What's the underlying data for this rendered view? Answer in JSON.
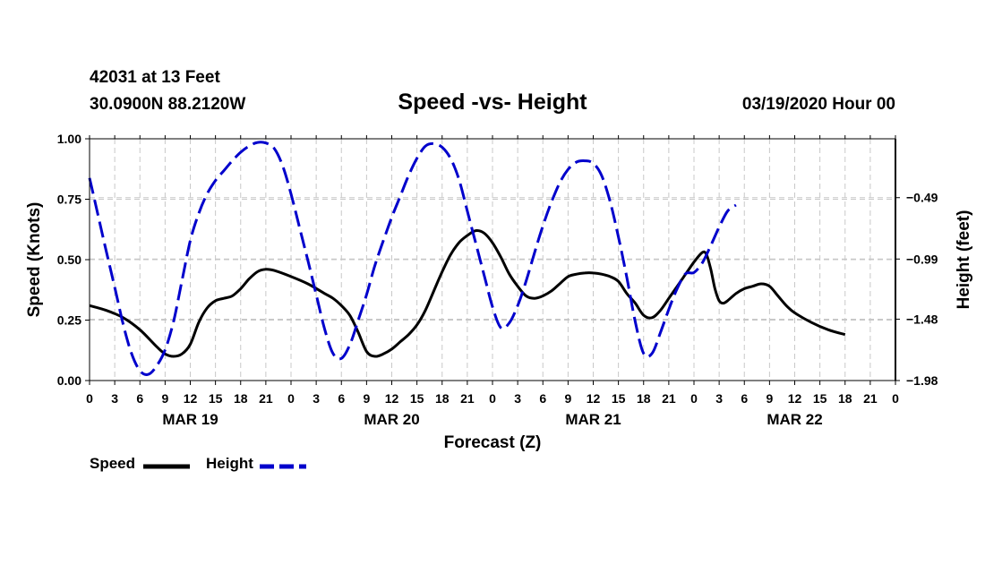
{
  "header": {
    "station": "42031 at 13 Feet",
    "coords": "30.0900N 88.2120W",
    "title": "Speed -vs- Height",
    "run": "03/19/2020 Hour 00"
  },
  "chart_data": {
    "type": "line",
    "title": "Speed -vs- Height",
    "xlabel": "Forecast (Z)",
    "ylabel_left": "Speed (Knots)",
    "ylabel_right": "Height (feet)",
    "x_hours_range": [
      0,
      96
    ],
    "x_tick_labels": [
      "0",
      "3",
      "6",
      "9",
      "12",
      "15",
      "18",
      "21",
      "0",
      "3",
      "6",
      "9",
      "12",
      "15",
      "18",
      "21",
      "0",
      "3",
      "6",
      "9",
      "12",
      "15",
      "18",
      "21",
      "0",
      "3",
      "6",
      "9",
      "12",
      "15",
      "18",
      "21",
      "0"
    ],
    "day_labels": [
      {
        "hour": 12,
        "label": "MAR 19"
      },
      {
        "hour": 36,
        "label": "MAR 20"
      },
      {
        "hour": 60,
        "label": "MAR 21"
      },
      {
        "hour": 84,
        "label": "MAR 22"
      }
    ],
    "ylim_left": [
      0,
      1
    ],
    "yticks_left": [
      "0.00",
      "0.25",
      "0.50",
      "0.75",
      "1.00"
    ],
    "ylim_right": [
      -1.98,
      -0.0104
    ],
    "yticks_right": [
      {
        "value": -1.98,
        "label": "−1.98"
      },
      {
        "value": -1.48,
        "label": "−1.48"
      },
      {
        "value": -0.99,
        "label": "−0.99"
      },
      {
        "value": -0.49,
        "label": "−0.49"
      }
    ],
    "grid": true,
    "legend": "bottom-left",
    "series": [
      {
        "name": "Speed",
        "axis": "left",
        "color": "#000000",
        "style": "solid",
        "points": [
          [
            0,
            0.31
          ],
          [
            2,
            0.29
          ],
          [
            4,
            0.26
          ],
          [
            6,
            0.21
          ],
          [
            8,
            0.14
          ],
          [
            9,
            0.11
          ],
          [
            10,
            0.1
          ],
          [
            11,
            0.11
          ],
          [
            12,
            0.15
          ],
          [
            13,
            0.24
          ],
          [
            14,
            0.3
          ],
          [
            15,
            0.33
          ],
          [
            16,
            0.34
          ],
          [
            17,
            0.35
          ],
          [
            18,
            0.38
          ],
          [
            19,
            0.42
          ],
          [
            20,
            0.45
          ],
          [
            21,
            0.46
          ],
          [
            22,
            0.455
          ],
          [
            24,
            0.43
          ],
          [
            26,
            0.4
          ],
          [
            28,
            0.36
          ],
          [
            29,
            0.34
          ],
          [
            30,
            0.31
          ],
          [
            31,
            0.27
          ],
          [
            32,
            0.2
          ],
          [
            33,
            0.12
          ],
          [
            34,
            0.1
          ],
          [
            35,
            0.11
          ],
          [
            36,
            0.13
          ],
          [
            37,
            0.16
          ],
          [
            38,
            0.19
          ],
          [
            39,
            0.23
          ],
          [
            40,
            0.29
          ],
          [
            41,
            0.37
          ],
          [
            42,
            0.45
          ],
          [
            43,
            0.52
          ],
          [
            44,
            0.57
          ],
          [
            45,
            0.6
          ],
          [
            46,
            0.62
          ],
          [
            47,
            0.61
          ],
          [
            48,
            0.57
          ],
          [
            49,
            0.51
          ],
          [
            50,
            0.44
          ],
          [
            51,
            0.39
          ],
          [
            52,
            0.35
          ],
          [
            53,
            0.34
          ],
          [
            54,
            0.35
          ],
          [
            55,
            0.37
          ],
          [
            56,
            0.4
          ],
          [
            57,
            0.43
          ],
          [
            58,
            0.44
          ],
          [
            59,
            0.445
          ],
          [
            60,
            0.445
          ],
          [
            61,
            0.44
          ],
          [
            62,
            0.43
          ],
          [
            63,
            0.41
          ],
          [
            64,
            0.36
          ],
          [
            65,
            0.32
          ],
          [
            66,
            0.27
          ],
          [
            67,
            0.26
          ],
          [
            68,
            0.29
          ],
          [
            69,
            0.34
          ],
          [
            70,
            0.39
          ],
          [
            71,
            0.44
          ],
          [
            72,
            0.49
          ],
          [
            73,
            0.53
          ],
          [
            73.5,
            0.52
          ],
          [
            74,
            0.46
          ],
          [
            74.5,
            0.38
          ],
          [
            75,
            0.33
          ],
          [
            75.5,
            0.32
          ],
          [
            76,
            0.33
          ],
          [
            77,
            0.36
          ],
          [
            78,
            0.38
          ],
          [
            79,
            0.39
          ],
          [
            80,
            0.4
          ],
          [
            81,
            0.39
          ],
          [
            82,
            0.35
          ],
          [
            83,
            0.31
          ],
          [
            84,
            0.28
          ],
          [
            86,
            0.24
          ],
          [
            88,
            0.21
          ],
          [
            90,
            0.19
          ]
        ]
      },
      {
        "name": "Height",
        "axis": "right",
        "color": "#0000cc",
        "style": "dashed",
        "points": [
          [
            0,
            -0.33
          ],
          [
            1,
            -0.63
          ],
          [
            2,
            -0.93
          ],
          [
            3,
            -1.22
          ],
          [
            4,
            -1.52
          ],
          [
            5,
            -1.76
          ],
          [
            6,
            -1.9
          ],
          [
            7,
            -1.93
          ],
          [
            8,
            -1.86
          ],
          [
            9,
            -1.73
          ],
          [
            10,
            -1.5
          ],
          [
            11,
            -1.17
          ],
          [
            12,
            -0.84
          ],
          [
            13,
            -0.62
          ],
          [
            14,
            -0.46
          ],
          [
            15,
            -0.35
          ],
          [
            16,
            -0.27
          ],
          [
            17,
            -0.19
          ],
          [
            18,
            -0.12
          ],
          [
            19,
            -0.07
          ],
          [
            20,
            -0.04
          ],
          [
            21,
            -0.045
          ],
          [
            22,
            -0.09
          ],
          [
            23,
            -0.23
          ],
          [
            24,
            -0.46
          ],
          [
            25,
            -0.73
          ],
          [
            26,
            -1.0
          ],
          [
            27,
            -1.28
          ],
          [
            28,
            -1.56
          ],
          [
            29,
            -1.76
          ],
          [
            30,
            -1.8
          ],
          [
            31,
            -1.69
          ],
          [
            32,
            -1.49
          ],
          [
            33,
            -1.28
          ],
          [
            34,
            -1.04
          ],
          [
            35,
            -0.84
          ],
          [
            36,
            -0.65
          ],
          [
            37,
            -0.48
          ],
          [
            38,
            -0.31
          ],
          [
            39,
            -0.17
          ],
          [
            40,
            -0.07
          ],
          [
            41,
            -0.05
          ],
          [
            42,
            -0.08
          ],
          [
            43,
            -0.17
          ],
          [
            44,
            -0.34
          ],
          [
            45,
            -0.6
          ],
          [
            46,
            -0.86
          ],
          [
            47,
            -1.12
          ],
          [
            48,
            -1.38
          ],
          [
            49,
            -1.55
          ],
          [
            50,
            -1.51
          ],
          [
            51,
            -1.37
          ],
          [
            52,
            -1.17
          ],
          [
            53,
            -0.94
          ],
          [
            54,
            -0.72
          ],
          [
            55,
            -0.53
          ],
          [
            56,
            -0.37
          ],
          [
            57,
            -0.26
          ],
          [
            58,
            -0.2
          ],
          [
            59,
            -0.19
          ],
          [
            60,
            -0.21
          ],
          [
            61,
            -0.31
          ],
          [
            62,
            -0.52
          ],
          [
            63,
            -0.81
          ],
          [
            64,
            -1.14
          ],
          [
            65,
            -1.5
          ],
          [
            66,
            -1.76
          ],
          [
            67,
            -1.76
          ],
          [
            68,
            -1.59
          ],
          [
            69,
            -1.4
          ],
          [
            70,
            -1.23
          ],
          [
            71,
            -1.11
          ],
          [
            72,
            -1.1
          ],
          [
            73,
            -1.02
          ],
          [
            74,
            -0.88
          ],
          [
            75,
            -0.73
          ],
          [
            76,
            -0.6
          ],
          [
            77,
            -0.55
          ]
        ]
      }
    ]
  },
  "legend": {
    "speed_label": "Speed",
    "height_label": "Height"
  }
}
